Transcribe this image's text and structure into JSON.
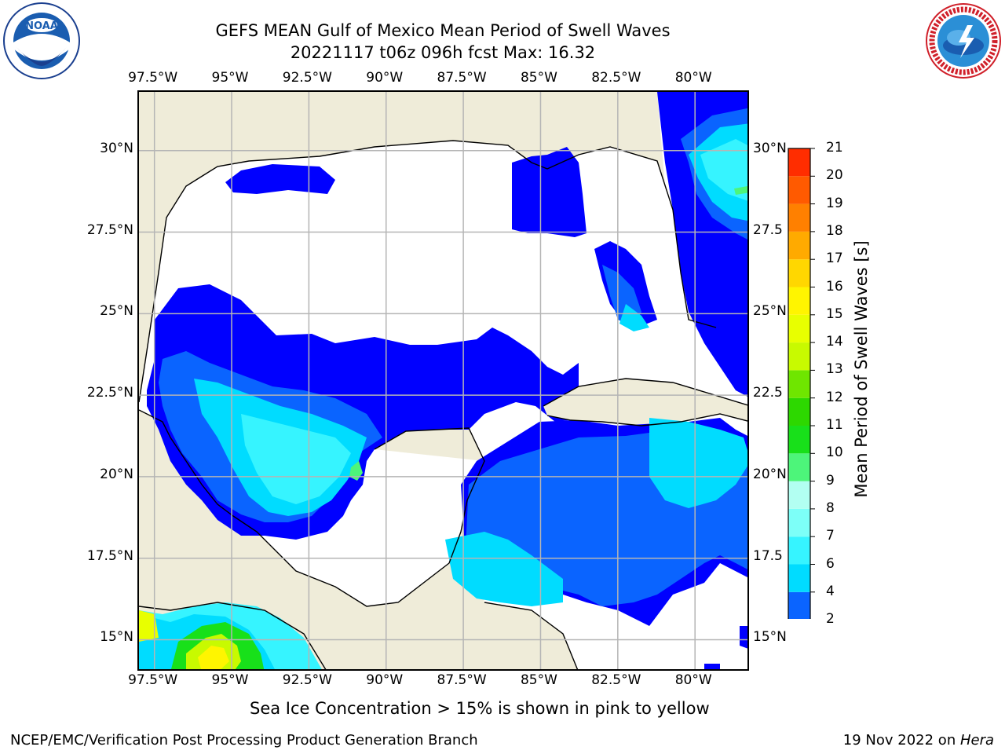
{
  "title_line1": "GEFS MEAN Gulf of Mexico Mean Period of Swell Waves",
  "title_line2": "20221117 t06z 096h fcst   Max: 16.32",
  "lon_ticks": [
    {
      "label": "97.5°W",
      "lon": -97.5
    },
    {
      "label": "95°W",
      "lon": -95
    },
    {
      "label": "92.5°W",
      "lon": -92.5
    },
    {
      "label": "90°W",
      "lon": -90
    },
    {
      "label": "87.5°W",
      "lon": -87.5
    },
    {
      "label": "85°W",
      "lon": -85
    },
    {
      "label": "82.5°W",
      "lon": -82.5
    },
    {
      "label": "80°W",
      "lon": -80
    }
  ],
  "lat_ticks_left": [
    {
      "label": "30°N",
      "lat": 30
    },
    {
      "label": "27.5°N",
      "lat": 27.5
    },
    {
      "label": "25°N",
      "lat": 25
    },
    {
      "label": "22.5°N",
      "lat": 22.5
    },
    {
      "label": "20°N",
      "lat": 20
    },
    {
      "label": "17.5°N",
      "lat": 17.5
    },
    {
      "label": "15°N",
      "lat": 15
    }
  ],
  "lat_ticks_right": [
    {
      "label": "30°N",
      "lat": 30
    },
    {
      "label": "27.5",
      "lat": 27.5
    },
    {
      "label": "25°N",
      "lat": 25
    },
    {
      "label": "22.5",
      "lat": 22.5
    },
    {
      "label": "20°N",
      "lat": 20
    },
    {
      "label": "17.5",
      "lat": 17.5
    },
    {
      "label": "15°N",
      "lat": 15
    }
  ],
  "map_extent": {
    "lon_min": -98.0,
    "lon_max": -78.2,
    "lat_min": 14.0,
    "lat_max": 31.8
  },
  "colorbar": {
    "title": "Mean Period of Swell Waves [s]",
    "labels": [
      "2",
      "4",
      "6",
      "7",
      "8",
      "9",
      "10",
      "11",
      "12",
      "13",
      "14",
      "15",
      "16",
      "17",
      "18",
      "19",
      "20",
      "21"
    ],
    "colors": [
      "#0a64ff",
      "#00dcff",
      "#36f4ff",
      "#7dfff8",
      "#b2fff2",
      "#4df57a",
      "#18e01a",
      "#2dd800",
      "#6fe600",
      "#c8fa00",
      "#e8ff00",
      "#fff500",
      "#ffd700",
      "#ffaa00",
      "#ff8000",
      "#ff5a00",
      "#ff2d00",
      "#ff0000"
    ],
    "under_color": "#0000ff"
  },
  "colors": {
    "land": "#efecd9",
    "water": "#ffffff",
    "grid": "#b5b5b5"
  },
  "logos": {
    "left": "noaa-logo",
    "right": "nws-logo"
  },
  "footer_note": "Sea Ice Concentration > 15% is shown in pink to yellow",
  "footer_left": "NCEP/EMC/Verification Post Processing Product Generation Branch",
  "footer_right_date": "19 Nov 2022 on ",
  "footer_right_host": "Hera"
}
